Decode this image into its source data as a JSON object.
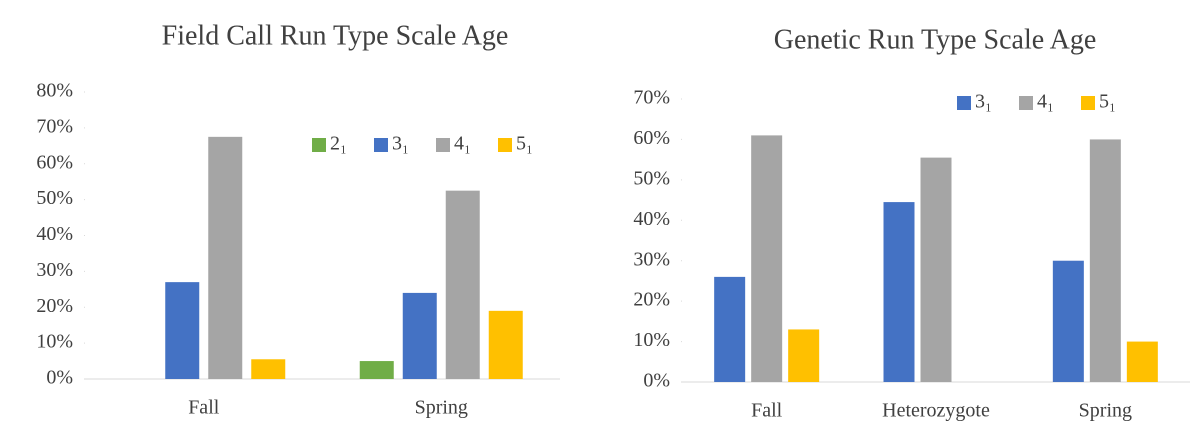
{
  "chart_data": [
    {
      "type": "bar",
      "title": "Field Call Run Type Scale Age",
      "categories": [
        "Fall",
        "Spring"
      ],
      "series": [
        {
          "name": "2₁",
          "color": "#70ad47",
          "values": [
            0,
            5
          ]
        },
        {
          "name": "3₁",
          "color": "#4472c4",
          "values": [
            27,
            24
          ]
        },
        {
          "name": "4₁",
          "color": "#a5a5a5",
          "values": [
            67.5,
            52.5
          ]
        },
        {
          "name": "5₁",
          "color": "#ffc000",
          "values": [
            5.5,
            19
          ]
        }
      ],
      "ylim": [
        0,
        80
      ],
      "yticks": [
        {
          "value": 0,
          "label": "0%"
        },
        {
          "value": 10,
          "label": "10%"
        },
        {
          "value": 20,
          "label": "20%"
        },
        {
          "value": 30,
          "label": "30%"
        },
        {
          "value": 40,
          "label": "40%"
        },
        {
          "value": 50,
          "label": "50%"
        },
        {
          "value": 60,
          "label": "60%"
        },
        {
          "value": 70,
          "label": "70%"
        },
        {
          "value": 80,
          "label": "80%"
        }
      ],
      "legend": "top-right"
    },
    {
      "type": "bar",
      "title": "Genetic Run Type Scale Age",
      "categories": [
        "Fall",
        "Heterozygote",
        "Spring"
      ],
      "series": [
        {
          "name": "3₁",
          "color": "#4472c4",
          "values": [
            26,
            44.5,
            30
          ]
        },
        {
          "name": "4₁",
          "color": "#a5a5a5",
          "values": [
            61,
            55.5,
            60
          ]
        },
        {
          "name": "5₁",
          "color": "#ffc000",
          "values": [
            13,
            0,
            10
          ]
        }
      ],
      "ylim": [
        0,
        70
      ],
      "yticks": [
        {
          "value": 0,
          "label": "0%"
        },
        {
          "value": 10,
          "label": "10%"
        },
        {
          "value": 20,
          "label": "20%"
        },
        {
          "value": 30,
          "label": "30%"
        },
        {
          "value": 40,
          "label": "40%"
        },
        {
          "value": 50,
          "label": "50%"
        },
        {
          "value": 60,
          "label": "60%"
        },
        {
          "value": 70,
          "label": "70%"
        }
      ],
      "legend": "top-right"
    }
  ]
}
